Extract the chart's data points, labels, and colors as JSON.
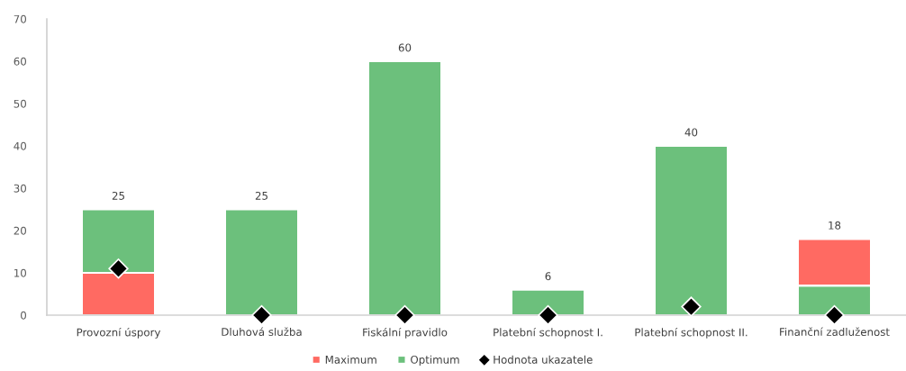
{
  "chart_data": {
    "type": "bar",
    "stacked": true,
    "categories": [
      "Provozní úspory",
      "Dluhová služba",
      "Fiskální pravidlo",
      "Platební schopnost I.",
      "Platební schopnost II.",
      "Finanční zadluženost"
    ],
    "series": [
      {
        "name": "Maximum",
        "color": "#ff6a62",
        "values": [
          10,
          null,
          null,
          null,
          null,
          null
        ]
      },
      {
        "name": "Optimum",
        "color": "#6cc07c",
        "values": [
          15,
          25,
          60,
          6,
          40,
          7
        ]
      },
      {
        "color": "#ff6a62",
        "values": [
          null,
          null,
          null,
          null,
          null,
          11
        ]
      },
      {
        "name": "Hodnota ukazatele",
        "type": "scatter",
        "color": "#000000",
        "marker": "diamond",
        "x": [
          "Provozní úspory",
          "Dluhová služba",
          "Fiskální pravidlo",
          "Platební schopnost I.",
          "Platební schopnost II.",
          "Finanční zadluženost"
        ],
        "values": [
          11,
          0,
          0,
          0,
          2,
          0
        ]
      }
    ],
    "totals": [
      "25",
      "25",
      "60",
      "6",
      "40",
      "18"
    ],
    "ylim": [
      0,
      70
    ],
    "yticks": [
      0,
      10,
      20,
      30,
      40,
      50,
      60,
      70
    ],
    "grid": false,
    "legend": "bottom"
  }
}
